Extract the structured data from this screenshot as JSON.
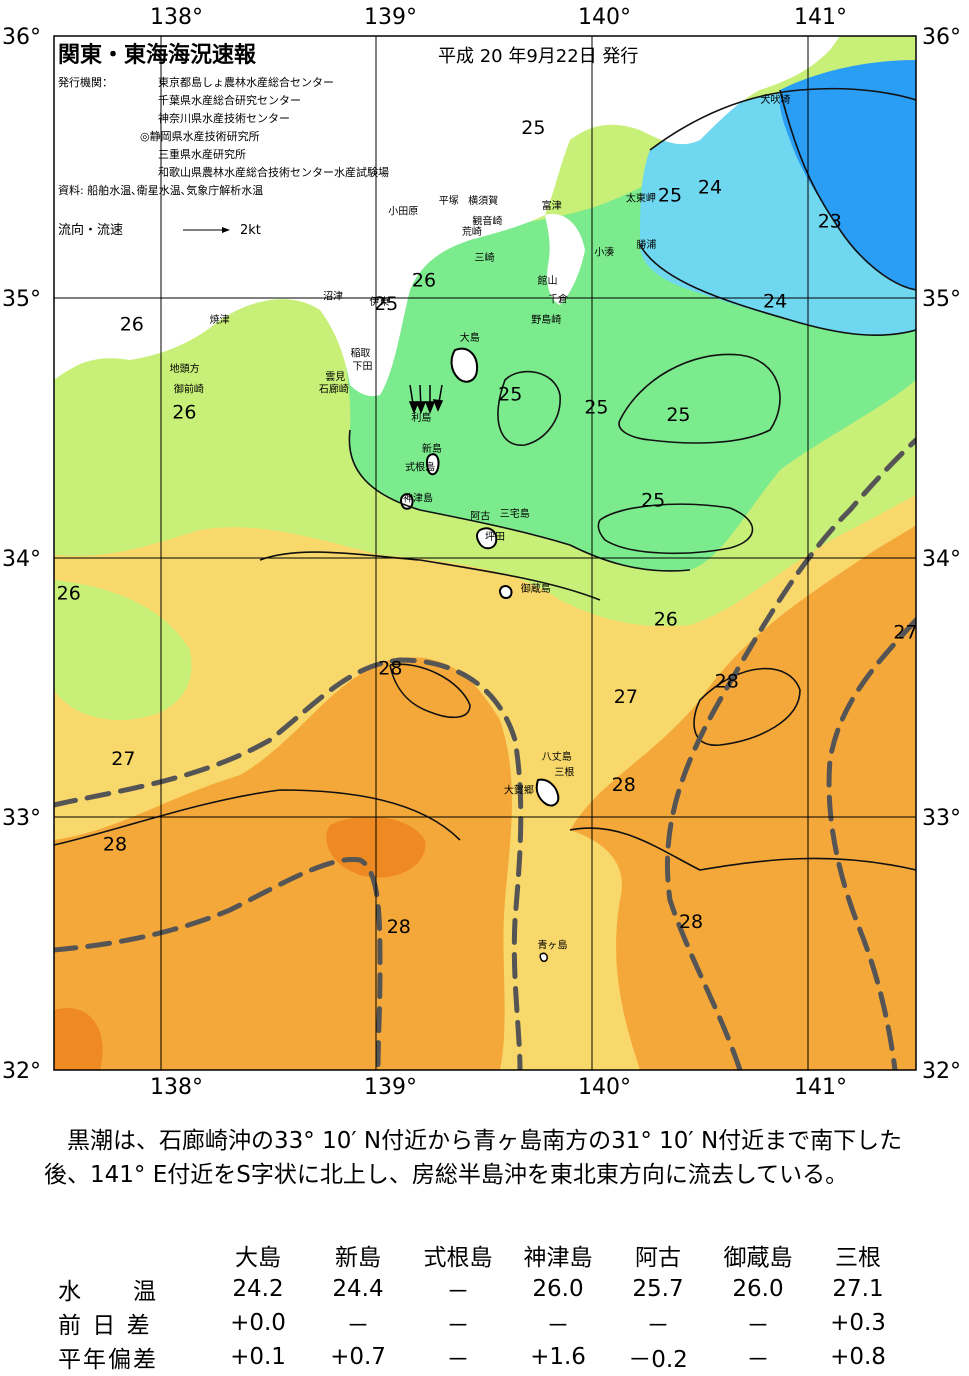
{
  "report": {
    "title": "関東・東海海況速報",
    "issue_date": "平成 20 年9月22日 発行",
    "issuer_label": "発行機関：",
    "issuers": [
      "東京都島しょ農林水産総合センター",
      "千葉県水産総合研究センター",
      "神奈川県水産技術センター",
      "◎静岡県水産技術研究所",
      "三重県水産研究所",
      "和歌山県農林水産総合技術センター水産試験場"
    ],
    "sources": "資料: 船舶水温､衛星水温､気象庁解析水温",
    "current_legend_label": "流向・流速",
    "current_legend_scale": "2kt"
  },
  "axes": {
    "lon_labels": [
      "138°",
      "139°",
      "140°",
      "141°"
    ],
    "lat_labels": [
      "36°",
      "35°",
      "34°",
      "33°",
      "32°"
    ],
    "lon_range": [
      137.5,
      141.6
    ],
    "lat_range": [
      32.0,
      36.0
    ]
  },
  "colors": {
    "t23": "#2a9df4",
    "t24": "#6fd7f0",
    "t25": "#7ceb8e",
    "t26": "#c8ef78",
    "t27": "#f8d86a",
    "t28": "#f5a83a",
    "t29": "#ef8a22",
    "kuroshio_axis": "#555555",
    "land": "#ffffff"
  },
  "isotherm_labels": [
    {
      "text": "25",
      "lon": 139.78,
      "lat": 35.62
    },
    {
      "text": "24",
      "lon": 140.62,
      "lat": 35.39
    },
    {
      "text": "25",
      "lon": 140.43,
      "lat": 35.36
    },
    {
      "text": "23",
      "lon": 141.19,
      "lat": 35.26
    },
    {
      "text": "24",
      "lon": 140.93,
      "lat": 34.95
    },
    {
      "text": "26",
      "lon": 139.26,
      "lat": 35.03
    },
    {
      "text": "25",
      "lon": 139.08,
      "lat": 34.94
    },
    {
      "text": "26",
      "lon": 137.87,
      "lat": 34.86
    },
    {
      "text": "26",
      "lon": 138.12,
      "lat": 34.52
    },
    {
      "text": "25",
      "lon": 139.67,
      "lat": 34.59
    },
    {
      "text": "25",
      "lon": 140.08,
      "lat": 34.54
    },
    {
      "text": "25",
      "lon": 140.47,
      "lat": 34.51
    },
    {
      "text": "25",
      "lon": 140.35,
      "lat": 34.18
    },
    {
      "text": "26",
      "lon": 140.41,
      "lat": 33.72
    },
    {
      "text": "26",
      "lon": 137.57,
      "lat": 33.82
    },
    {
      "text": "28",
      "lon": 139.1,
      "lat": 33.53
    },
    {
      "text": "27",
      "lon": 140.22,
      "lat": 33.42
    },
    {
      "text": "28",
      "lon": 140.7,
      "lat": 33.48
    },
    {
      "text": "27",
      "lon": 141.55,
      "lat": 33.67
    },
    {
      "text": "27",
      "lon": 137.83,
      "lat": 33.18
    },
    {
      "text": "28",
      "lon": 140.21,
      "lat": 33.08
    },
    {
      "text": "28",
      "lon": 137.79,
      "lat": 32.85
    },
    {
      "text": "28",
      "lon": 139.14,
      "lat": 32.53
    },
    {
      "text": "28",
      "lon": 140.53,
      "lat": 32.55
    }
  ],
  "places": [
    {
      "text": "犬吠埼",
      "lon": 140.86,
      "lat": 35.74
    },
    {
      "text": "太東岬",
      "lon": 140.22,
      "lat": 35.36
    },
    {
      "text": "勝浦",
      "lon": 140.27,
      "lat": 35.18
    },
    {
      "text": "小湊",
      "lon": 140.07,
      "lat": 35.15
    },
    {
      "text": "富津",
      "lon": 139.82,
      "lat": 35.33
    },
    {
      "text": "平塚",
      "lon": 139.33,
      "lat": 35.35
    },
    {
      "text": "横須賀",
      "lon": 139.47,
      "lat": 35.35
    },
    {
      "text": "小田原",
      "lon": 139.09,
      "lat": 35.31
    },
    {
      "text": "観音崎",
      "lon": 139.49,
      "lat": 35.27
    },
    {
      "text": "荒崎",
      "lon": 139.44,
      "lat": 35.23
    },
    {
      "text": "三崎",
      "lon": 139.5,
      "lat": 35.13
    },
    {
      "text": "館山",
      "lon": 139.8,
      "lat": 35.04
    },
    {
      "text": "千倉",
      "lon": 139.85,
      "lat": 34.97
    },
    {
      "text": "野島崎",
      "lon": 139.77,
      "lat": 34.89
    },
    {
      "text": "沼津",
      "lon": 138.78,
      "lat": 34.98
    },
    {
      "text": "伊東",
      "lon": 139.0,
      "lat": 34.96
    },
    {
      "text": "焼津",
      "lon": 138.24,
      "lat": 34.89
    },
    {
      "text": "稲取",
      "lon": 138.91,
      "lat": 34.76
    },
    {
      "text": "下田",
      "lon": 138.92,
      "lat": 34.71
    },
    {
      "text": "雲見",
      "lon": 138.79,
      "lat": 34.67
    },
    {
      "text": "石廊崎",
      "lon": 138.76,
      "lat": 34.62
    },
    {
      "text": "地頭方",
      "lon": 138.05,
      "lat": 34.7
    },
    {
      "text": "御前崎",
      "lon": 138.07,
      "lat": 34.62
    },
    {
      "text": "大島",
      "lon": 139.43,
      "lat": 34.82
    },
    {
      "text": "利島",
      "lon": 139.2,
      "lat": 34.51
    },
    {
      "text": "新島",
      "lon": 139.25,
      "lat": 34.39
    },
    {
      "text": "式根島",
      "lon": 139.17,
      "lat": 34.32
    },
    {
      "text": "神津島",
      "lon": 139.16,
      "lat": 34.2
    },
    {
      "text": "阿古",
      "lon": 139.48,
      "lat": 34.13
    },
    {
      "text": "三宅島",
      "lon": 139.62,
      "lat": 34.14
    },
    {
      "text": "坪田",
      "lon": 139.55,
      "lat": 34.05
    },
    {
      "text": "御蔵島",
      "lon": 139.72,
      "lat": 33.85
    },
    {
      "text": "八丈島",
      "lon": 139.82,
      "lat": 33.2
    },
    {
      "text": "三根",
      "lon": 139.88,
      "lat": 33.14
    },
    {
      "text": "大賀郷",
      "lon": 139.64,
      "lat": 33.07
    },
    {
      "text": "青ヶ島",
      "lon": 139.8,
      "lat": 32.47
    }
  ],
  "summary": "黒潮は、石廊崎沖の33° 10′ N付近から青ヶ島南方の31° 10′ N付近まで南下した後、141° E付近をS字状に北上し、房総半島沖を東北東方向に流去している。",
  "table": {
    "columns": [
      "大島",
      "新島",
      "式根島",
      "神津島",
      "阿古",
      "御蔵島",
      "三根"
    ],
    "rows": [
      {
        "label": "水　　温",
        "values": [
          "24.2",
          "24.4",
          "－",
          "26.0",
          "25.7",
          "26.0",
          "27.1"
        ]
      },
      {
        "label": "前 日 差",
        "values": [
          "+0.0",
          "－",
          "－",
          "－",
          "－",
          "－",
          "+0.3"
        ]
      },
      {
        "label": "平年偏差",
        "values": [
          "+0.1",
          "+0.7",
          "－",
          "+1.6",
          "－0.2",
          "－",
          "+0.8"
        ]
      }
    ]
  }
}
